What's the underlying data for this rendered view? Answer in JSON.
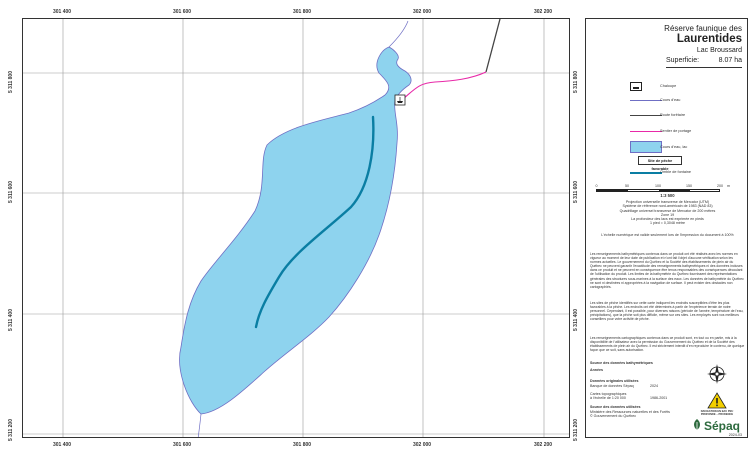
{
  "map": {
    "x_ticks": [
      "301 400",
      "301 600",
      "301 800",
      "302 000",
      "302 200"
    ],
    "y_ticks": [
      "5 311 800",
      "5 311 600",
      "5 311 400",
      "5 311 200"
    ],
    "colors": {
      "water": "#8ed3ee",
      "shoreline": "#6f6fc4",
      "trail": "#e829a8",
      "road": "#444444",
      "contour": "#0a7ea3",
      "grid": "#9a9a9a"
    }
  },
  "title": {
    "line1": "Réserve faunique des",
    "line2": "Laurentides",
    "lake": "Lac Broussard",
    "area_label": "Superficie:",
    "area_value": "8.07 ha"
  },
  "legend": [
    {
      "icon": "boat-launch-icon",
      "label": "Chaloupe"
    },
    {
      "icon": "watercourse-line",
      "label": "Cours d'eau"
    },
    {
      "icon": "forest-road-line",
      "label": "Route forêtaire"
    },
    {
      "icon": "portage-trail-line",
      "label": "Sentier de portage"
    },
    {
      "icon": "lake-fill",
      "label": "Cours d'eau, lac"
    },
    {
      "icon": "fishing-site-box",
      "label": "Site de pêche favorable"
    },
    {
      "icon": "depth-contour-line",
      "label": "Omble de fontaine"
    }
  ],
  "legend_box_label": "Site de pêche favorable",
  "scale": {
    "ticks": [
      "0",
      "50",
      "100",
      "150",
      "200"
    ],
    "unit": "m",
    "ratio": "1:3 500"
  },
  "projection": [
    "Projection universelle transverse de Mercator (UTM)",
    "Système de référence nord-américain de 1983 (NAD 83)",
    "Quadrillage universel transverse de Mercator de 200 mètres",
    "Zone 19",
    "La profondeur des lacs est exprimée en pieds",
    "1 pied = 0,3048 mètre"
  ],
  "print_note": "L'échelle numérique est valide seulement lors de l'impression du document à 100%",
  "paragraphs": [
    "Les renseignements bathymétriques contenus dans ce produit ont été réalisés avec les normes en vigueur au moment de leur date de publication et n'ont fait l'objet d'aucune vérification selon les normes actuelles. Le gouvernement du Québec et la Société des établissements de plein air du Québec ne peuvent garantir l'exactitude des renseignements bathymétriques ni des données incluses dans ce produit et ne peuvent en conséquence être tenus responsables des conséquences découlant de l'utilisation du produit. Les limites de la bathymétrie du Québec fournissent des représentations générales des structures sous-marines à la surface des eaux. Les données de bathymétrie du Québec ne sont ni destinées ni appropriées à la navigation de surface. Il peut exister des obstacles non cartographiés.",
    "Les sites de pêche identifiés sur cette carte indiquent les endroits susceptibles d'être les plus favorables à la pêche. Les endroits ont été déterminés à partir de l'expérience terrain de notre personnel. Cependant, il est possible, pour diverses raisons (période de l'année, température de l'eau, précipitations), que la pêche soit plus difficile, même sur ces sites. Les employés sont vos meilleurs conseillers pour votre activité de pêche.",
    "Les renseignements cartographiques contenus dans ce produit sont, en tout ou en partie, mis à la disponibilité de l'utilisateur avec la permission du Gouvernement du Québec et de la Société des établissements de plein air du Québec. Il est strictement interdit d'en reproduire le contenu, de quelque façon que ce soit, sans autorisation."
  ],
  "sources": {
    "bathy_heading": "Source des données bathymétriques",
    "years_label": "Années",
    "orig_heading": "Données originales utilisées",
    "orig_rows": [
      {
        "name": "Banque de données Sépaq",
        "year": "2024"
      },
      {
        "name": "Cartes topographiques\nà l'échelle de 1:20 000",
        "year": "1986-2001"
      }
    ],
    "used_heading": "Source des données utilisées",
    "used_text": "Ministère des Ressources naturelles et des Forêts\n© Gouvernement du Québec"
  },
  "warning_text": "NAVIGATION EN EAU PEU PROFONDE – PRUDENCE",
  "logo": "Sépaq",
  "date": "2024-03"
}
